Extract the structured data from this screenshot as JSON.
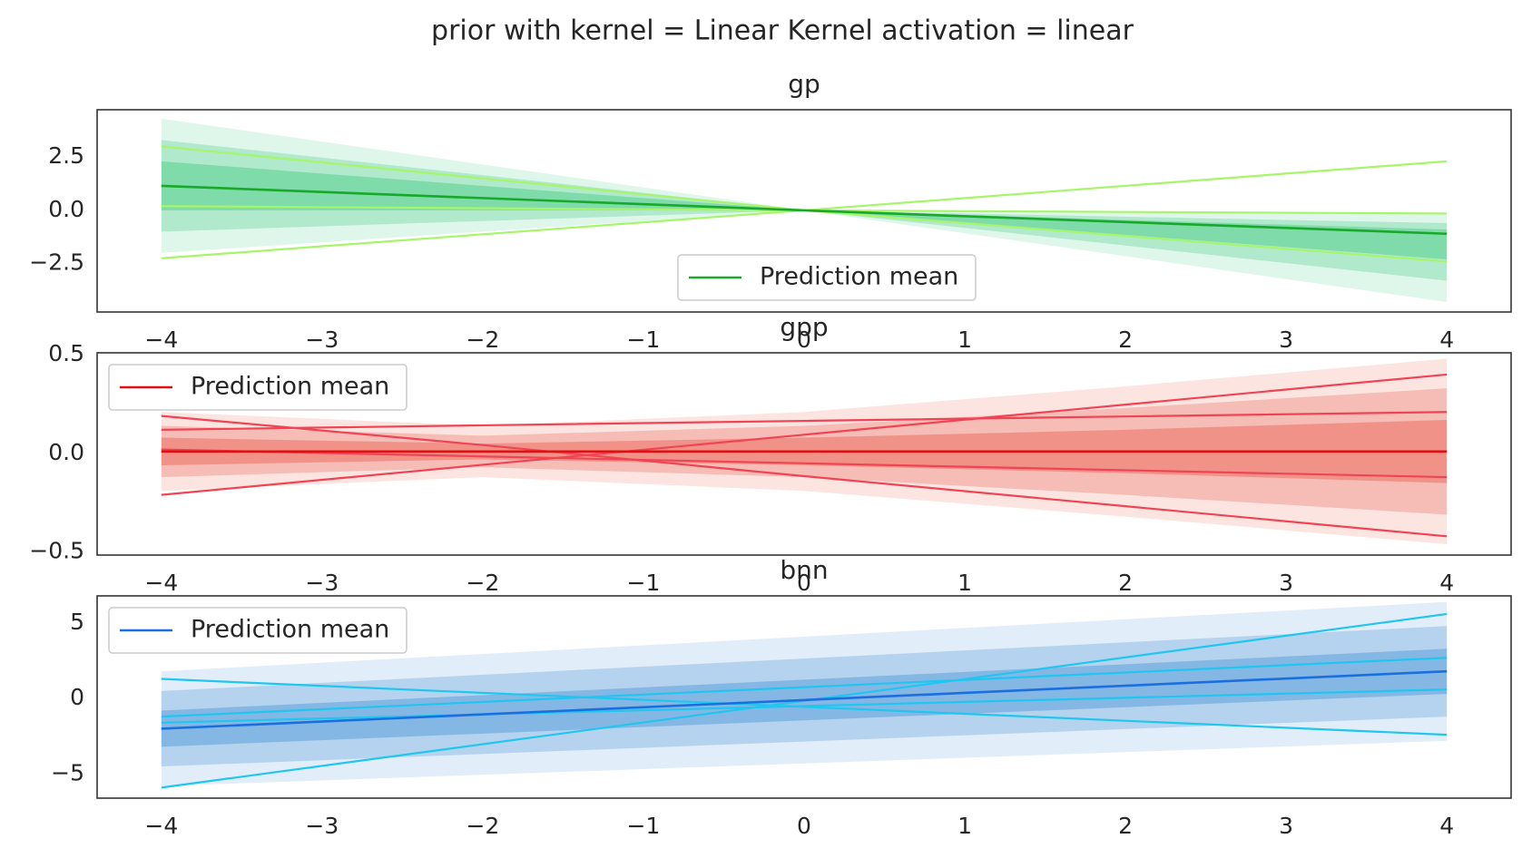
{
  "title": "prior with kernel = Linear Kernel activation = linear",
  "chart_data": [
    {
      "type": "line",
      "title": "gp",
      "x": [
        -4,
        0,
        4
      ],
      "series": [
        {
          "name": "Prediction mean",
          "color": "#18a82a",
          "values": [
            1.15,
            0,
            -1.1
          ]
        }
      ],
      "samples": {
        "color": "#a6f56a",
        "values": [
          [
            3.0,
            0,
            -2.4
          ],
          [
            -2.25,
            0,
            2.3
          ],
          [
            0.2,
            0,
            -0.15
          ]
        ]
      },
      "bands": {
        "color": "#1fc06a",
        "lower": [
          [
            -2.0,
            0,
            -4.3
          ],
          [
            -1.0,
            0,
            -3.3
          ],
          [
            0.0,
            0,
            -2.3
          ]
        ],
        "upper": [
          [
            4.3,
            0,
            -0.2
          ],
          [
            3.3,
            0,
            -0.6
          ],
          [
            2.3,
            0,
            -0.9
          ]
        ]
      },
      "xlim": [
        -4.4,
        4.4
      ],
      "ylim": [
        -4.77,
        4.72
      ],
      "xticks": [
        {
          "value": -4,
          "label": "−4"
        },
        {
          "value": -3,
          "label": "−3"
        },
        {
          "value": -2,
          "label": "−2"
        },
        {
          "value": -1,
          "label": "−1"
        },
        0,
        1,
        2,
        3,
        4
      ],
      "yticks": [
        2.5,
        {
          "value": 0,
          "label": "0.0"
        },
        {
          "value": -2.5,
          "label": "−2.5"
        }
      ],
      "legend": "lower center"
    },
    {
      "type": "line",
      "title": "gpp",
      "x": [
        -4,
        -2,
        0,
        2,
        4
      ],
      "series": [
        {
          "name": "Prediction mean",
          "color": "#e01010",
          "values": [
            0.01,
            0.01,
            0.01,
            0.01,
            0.01
          ]
        }
      ],
      "samples": {
        "color": "#f04455",
        "values": [
          [
            0.19,
            0.0425,
            -0.115,
            -0.2675,
            -0.42
          ],
          [
            -0.21,
            -0.0575,
            0.095,
            0.2475,
            0.4
          ],
          [
            0.12,
            0.1425,
            0.165,
            0.1875,
            0.21
          ],
          [
            0.02,
            -0.015,
            -0.05,
            -0.085,
            -0.12
          ]
        ]
      },
      "bands": {
        "color": "#e8402e",
        "lower": [
          [
            -0.19,
            -0.12,
            -0.19,
            -0.32,
            -0.46
          ],
          [
            -0.12,
            -0.07,
            -0.12,
            -0.21,
            -0.31
          ],
          [
            -0.06,
            -0.03,
            -0.06,
            -0.1,
            -0.15
          ]
        ],
        "upper": [
          [
            0.21,
            0.14,
            0.21,
            0.34,
            0.48
          ],
          [
            0.14,
            0.09,
            0.14,
            0.23,
            0.33
          ],
          [
            0.08,
            0.05,
            0.08,
            0.12,
            0.17
          ]
        ]
      },
      "xlim": [
        -4.4,
        4.4
      ],
      "ylim": [
        -0.515,
        0.51
      ],
      "xticks": [
        {
          "value": -4,
          "label": "−4"
        },
        {
          "value": -3,
          "label": "−3"
        },
        {
          "value": -2,
          "label": "−2"
        },
        {
          "value": -1,
          "label": "−1"
        },
        0,
        1,
        2,
        3,
        4
      ],
      "yticks": [
        0.5,
        {
          "value": 0,
          "label": "0.0"
        },
        {
          "value": -0.5,
          "label": "−0.5"
        }
      ],
      "legend": "upper left"
    },
    {
      "type": "line",
      "title": "bnn",
      "x": [
        -4,
        4
      ],
      "series": [
        {
          "name": "Prediction mean",
          "color": "#1a6fe0",
          "values": [
            -2.0,
            1.8
          ]
        }
      ],
      "samples": {
        "color": "#1ec6f0",
        "values": [
          [
            -5.9,
            5.6
          ],
          [
            1.3,
            -2.4
          ],
          [
            -1.2,
            2.7
          ],
          [
            -1.6,
            0.6
          ]
        ]
      },
      "bands": {
        "color": "#2a80d0",
        "lower": [
          [
            -5.8,
            -2.8
          ],
          [
            -4.5,
            -1.2
          ],
          [
            -3.2,
            0.3
          ]
        ],
        "upper": [
          [
            1.8,
            6.4
          ],
          [
            0.5,
            4.8
          ],
          [
            -0.8,
            3.3
          ]
        ]
      },
      "xlim": [
        -4.4,
        4.4
      ],
      "ylim": [
        -6.6,
        6.8
      ],
      "xticks": [
        {
          "value": -4,
          "label": "−4"
        },
        {
          "value": -3,
          "label": "−3"
        },
        {
          "value": -2,
          "label": "−2"
        },
        {
          "value": -1,
          "label": "−1"
        },
        0,
        1,
        2,
        3,
        4
      ],
      "yticks": [
        5,
        0,
        {
          "value": -5,
          "label": "−5"
        }
      ],
      "legend": "upper left"
    }
  ]
}
